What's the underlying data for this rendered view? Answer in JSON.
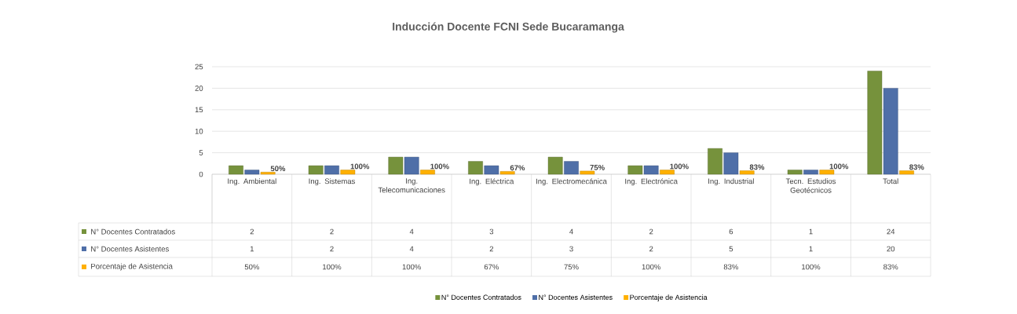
{
  "chart_data": {
    "type": "bar",
    "title": "Inducción Docente FCNI Sede Bucaramanga",
    "categories": [
      "Ing. Ambiental",
      "Ing. Sistemas",
      "Ing. Telecomunicaciones",
      "Ing. Eléctrica",
      "Ing. Electromecánica",
      "Ing. Electrónica",
      "Ing. Industrial",
      "Tecn. Estudios Geotécnicos",
      "Total"
    ],
    "series": [
      {
        "name": "N° Docentes Contratados",
        "color": "#76923c",
        "values": [
          2,
          2,
          4,
          3,
          4,
          2,
          6,
          1,
          24
        ]
      },
      {
        "name": "N° Docentes Asistentes",
        "color": "#4f6fa8",
        "values": [
          1,
          2,
          4,
          2,
          3,
          2,
          5,
          1,
          20
        ]
      },
      {
        "name": "Porcentaje de Asistencia",
        "color": "#ffb000",
        "values": [
          0.5,
          1,
          1,
          0.67,
          0.75,
          1,
          0.83,
          1,
          0.83
        ],
        "value_labels": [
          "50%",
          "100%",
          "100%",
          "67%",
          "75%",
          "100%",
          "83%",
          "100%",
          "83%"
        ]
      }
    ],
    "ylim": [
      0,
      25
    ],
    "yticks": [
      0,
      5,
      10,
      15,
      20,
      25
    ],
    "grid": "y",
    "legend": "bottom",
    "data_labels": true
  }
}
